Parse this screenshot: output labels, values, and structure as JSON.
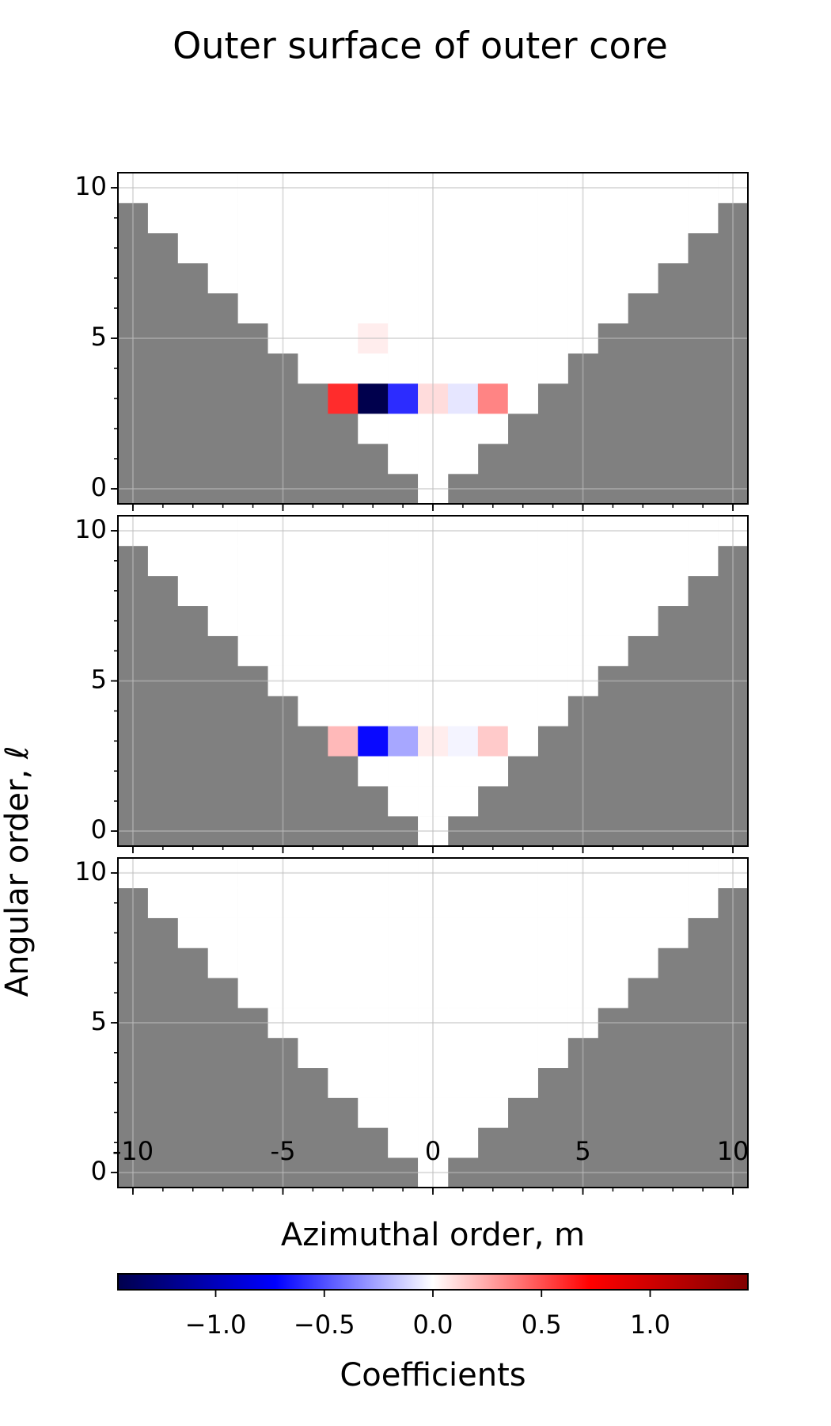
{
  "chart_data": {
    "type": "heatmap",
    "title": "Outer surface of outer core",
    "xlabel": "Azimuthal order, m",
    "ylabel": "Angular order, ℓ",
    "colorbar_label": "Coefficients",
    "colormap": "seismic",
    "mask_color": "#808080",
    "xlim": [
      -10.5,
      10.5
    ],
    "ylim": [
      -0.5,
      10.5
    ],
    "xticks": [
      -10,
      -5,
      0,
      5,
      10
    ],
    "yticks": [
      0,
      5,
      10
    ],
    "clim": [
      -1.45,
      1.45
    ],
    "cticks": [
      -1.0,
      -0.5,
      0.0,
      0.5,
      1.0
    ],
    "grid": true,
    "panels": [
      {
        "values": [
          [
            0
          ],
          [
            0,
            0,
            0
          ],
          [
            0,
            0,
            0,
            0,
            0
          ],
          [
            0.6,
            -1.45,
            -0.6,
            0.1,
            -0.07,
            0.35,
            0
          ],
          [
            0,
            0,
            0,
            0,
            0,
            0,
            0,
            0,
            0
          ],
          [
            0,
            0,
            0,
            0.05,
            0,
            0,
            0,
            0,
            0,
            0,
            0
          ],
          [
            0,
            0,
            0,
            0,
            0,
            0,
            0,
            0,
            0,
            0,
            0,
            0,
            0
          ],
          [
            0,
            0,
            0,
            0,
            0,
            0,
            0,
            0,
            0,
            0,
            0,
            0,
            0,
            0,
            0
          ],
          [
            0,
            0,
            0,
            0,
            0,
            0,
            0,
            0,
            0,
            0,
            0,
            0,
            0,
            0,
            0,
            0,
            0
          ],
          [
            0,
            0,
            0,
            0,
            0,
            0,
            0,
            0,
            0,
            0,
            0,
            0,
            0,
            0,
            0,
            0,
            0,
            0,
            0
          ],
          [
            0,
            0,
            0,
            0,
            0,
            0,
            0,
            0,
            0,
            0,
            0,
            0,
            0,
            0,
            0,
            0,
            0,
            0,
            0,
            0,
            0
          ]
        ]
      },
      {
        "values": [
          [
            0
          ],
          [
            0,
            0,
            0
          ],
          [
            0,
            0,
            0,
            0,
            0
          ],
          [
            0.2,
            -0.7,
            -0.25,
            0.05,
            -0.03,
            0.15,
            0
          ],
          [
            0,
            0,
            0,
            0,
            0,
            0,
            0,
            0,
            0
          ],
          [
            0,
            0,
            0,
            0,
            0,
            0,
            0,
            0,
            0,
            0,
            0
          ],
          [
            0,
            0,
            0,
            0,
            0,
            0,
            0,
            0,
            0,
            0,
            0,
            0,
            0
          ],
          [
            0,
            0,
            0,
            0,
            0,
            0,
            0,
            0,
            0,
            0,
            0,
            0,
            0,
            0,
            0
          ],
          [
            0,
            0,
            0,
            0,
            0,
            0,
            0,
            0,
            0,
            0,
            0,
            0,
            0,
            0,
            0,
            0,
            0
          ],
          [
            0,
            0,
            0,
            0,
            0,
            0,
            0,
            0,
            0,
            0,
            0,
            0,
            0,
            0,
            0,
            0,
            0,
            0,
            0
          ],
          [
            0,
            0,
            0,
            0,
            0,
            0,
            0,
            0,
            0,
            0,
            0,
            0,
            0,
            0,
            0,
            0,
            0,
            0,
            0,
            0,
            0
          ]
        ]
      },
      {
        "values": [
          [
            0
          ],
          [
            0,
            0,
            0
          ],
          [
            0,
            0,
            0,
            0,
            0
          ],
          [
            0,
            0,
            0,
            0,
            0,
            0,
            0
          ],
          [
            0,
            0,
            0,
            0,
            0,
            0,
            0,
            0,
            0
          ],
          [
            0,
            0,
            0,
            0,
            0,
            0,
            0,
            0,
            0,
            0,
            0
          ],
          [
            0,
            0,
            0,
            0,
            0,
            0,
            0,
            0,
            0,
            0,
            0,
            0,
            0
          ],
          [
            0,
            0,
            0,
            0,
            0,
            0,
            0,
            0,
            0,
            0,
            0,
            0,
            0,
            0,
            0
          ],
          [
            0,
            0,
            0,
            0,
            0,
            0,
            0,
            0,
            0,
            0,
            0,
            0,
            0,
            0,
            0,
            0,
            0
          ],
          [
            0,
            0,
            0,
            0,
            0,
            0,
            0,
            0,
            0,
            0,
            0,
            0,
            0,
            0,
            0,
            0,
            0,
            0,
            0
          ],
          [
            0,
            0,
            0,
            0,
            0,
            0,
            0,
            0,
            0,
            0,
            0,
            0,
            0,
            0,
            0,
            0,
            0,
            0,
            0,
            0,
            0
          ]
        ]
      }
    ]
  }
}
